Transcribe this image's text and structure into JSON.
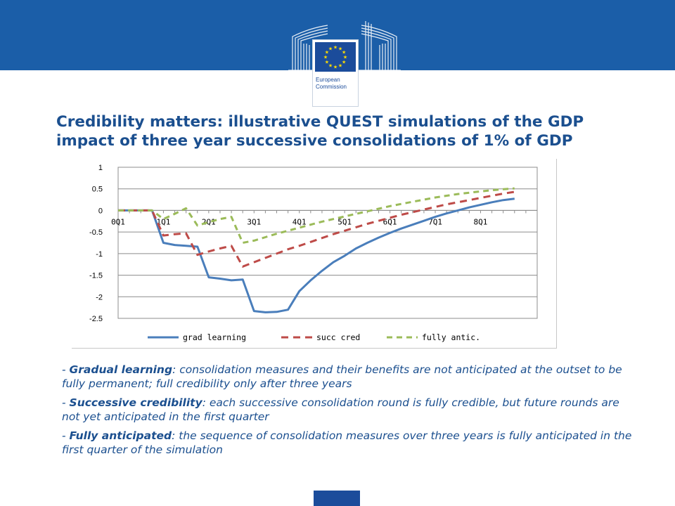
{
  "header": {
    "logo_line1": "European",
    "logo_line2": "Commission"
  },
  "title": {
    "line1": "Credibility matters: illustrative QUEST simulations of the GDP",
    "line2": "impact of three year successive consolidations of 1% of GDP"
  },
  "chart_data": {
    "type": "line",
    "ylim": [
      -2.5,
      1
    ],
    "yticks": [
      "1",
      "0.5",
      "0",
      "-0.5",
      "-1",
      "-1.5",
      "-2",
      "-2.5"
    ],
    "ytick_values": [
      1,
      0.5,
      0,
      -0.5,
      -1,
      -1.5,
      -2,
      -2.5
    ],
    "xlim": [
      0,
      35
    ],
    "xtick_labels": [
      "0Q1",
      "1Q1",
      "2Q1",
      "3Q1",
      "4Q1",
      "5Q1",
      "6Q1",
      "7Q1",
      "8Q1"
    ],
    "xtick_positions": [
      0,
      4,
      8,
      12,
      16,
      20,
      24,
      28,
      32
    ],
    "grid": true,
    "legend_position": "bottom",
    "series": [
      {
        "name": "grad learning",
        "color": "#4a7ebb",
        "dash": "solid",
        "points": [
          [
            0,
            0
          ],
          [
            1,
            0
          ],
          [
            2,
            0
          ],
          [
            3,
            0
          ],
          [
            4,
            -0.75
          ],
          [
            5,
            -0.8
          ],
          [
            6,
            -0.82
          ],
          [
            7,
            -0.84
          ],
          [
            8,
            -1.55
          ],
          [
            9,
            -1.58
          ],
          [
            10,
            -1.62
          ],
          [
            11,
            -1.6
          ],
          [
            12,
            -2.33
          ],
          [
            13,
            -2.36
          ],
          [
            14,
            -2.35
          ],
          [
            15,
            -2.3
          ],
          [
            16,
            -1.87
          ],
          [
            17,
            -1.62
          ],
          [
            18,
            -1.4
          ],
          [
            19,
            -1.2
          ],
          [
            20,
            -1.05
          ],
          [
            21,
            -0.88
          ],
          [
            22,
            -0.75
          ],
          [
            23,
            -0.63
          ],
          [
            24,
            -0.52
          ],
          [
            25,
            -0.42
          ],
          [
            26,
            -0.33
          ],
          [
            27,
            -0.24
          ],
          [
            28,
            -0.15
          ],
          [
            29,
            -0.07
          ],
          [
            30,
            0.0
          ],
          [
            31,
            0.07
          ],
          [
            32,
            0.13
          ],
          [
            33,
            0.19
          ],
          [
            34,
            0.24
          ],
          [
            35,
            0.27
          ]
        ]
      },
      {
        "name": "succ cred",
        "color": "#be4b48",
        "dash": "dashed",
        "points": [
          [
            0,
            0
          ],
          [
            1,
            0
          ],
          [
            2,
            0
          ],
          [
            3,
            0
          ],
          [
            4,
            -0.58
          ],
          [
            5,
            -0.55
          ],
          [
            6,
            -0.53
          ],
          [
            7,
            -1.03
          ],
          [
            8,
            -0.95
          ],
          [
            9,
            -0.88
          ],
          [
            10,
            -0.82
          ],
          [
            11,
            -1.3
          ],
          [
            12,
            -1.2
          ],
          [
            13,
            -1.1
          ],
          [
            14,
            -1.0
          ],
          [
            15,
            -0.9
          ],
          [
            16,
            -0.82
          ],
          [
            17,
            -0.73
          ],
          [
            18,
            -0.64
          ],
          [
            19,
            -0.55
          ],
          [
            20,
            -0.47
          ],
          [
            21,
            -0.39
          ],
          [
            22,
            -0.31
          ],
          [
            23,
            -0.24
          ],
          [
            24,
            -0.17
          ],
          [
            25,
            -0.1
          ],
          [
            26,
            -0.04
          ],
          [
            27,
            0.02
          ],
          [
            28,
            0.08
          ],
          [
            29,
            0.14
          ],
          [
            30,
            0.19
          ],
          [
            31,
            0.24
          ],
          [
            32,
            0.29
          ],
          [
            33,
            0.34
          ],
          [
            34,
            0.39
          ],
          [
            35,
            0.43
          ]
        ]
      },
      {
        "name": "fully antic.",
        "color": "#9bbb59",
        "dash": "dashed",
        "points": [
          [
            0,
            0
          ],
          [
            1,
            0
          ],
          [
            2,
            0
          ],
          [
            3,
            0
          ],
          [
            4,
            -0.2
          ],
          [
            5,
            -0.08
          ],
          [
            6,
            0.05
          ],
          [
            7,
            -0.35
          ],
          [
            8,
            -0.27
          ],
          [
            9,
            -0.2
          ],
          [
            10,
            -0.15
          ],
          [
            11,
            -0.75
          ],
          [
            12,
            -0.7
          ],
          [
            13,
            -0.62
          ],
          [
            14,
            -0.54
          ],
          [
            15,
            -0.47
          ],
          [
            16,
            -0.4
          ],
          [
            17,
            -0.33
          ],
          [
            18,
            -0.26
          ],
          [
            19,
            -0.2
          ],
          [
            20,
            -0.14
          ],
          [
            21,
            -0.08
          ],
          [
            22,
            -0.02
          ],
          [
            23,
            0.04
          ],
          [
            24,
            0.1
          ],
          [
            25,
            0.15
          ],
          [
            26,
            0.2
          ],
          [
            27,
            0.25
          ],
          [
            28,
            0.3
          ],
          [
            29,
            0.34
          ],
          [
            30,
            0.38
          ],
          [
            31,
            0.41
          ],
          [
            32,
            0.44
          ],
          [
            33,
            0.47
          ],
          [
            34,
            0.49
          ],
          [
            35,
            0.51
          ]
        ]
      }
    ]
  },
  "bullets": [
    {
      "lead": "- ",
      "term": "Gradual learning",
      "text": ": consolidation measures and their benefits are not anticipated at the outset to be fully permanent; full credibility only after three years"
    },
    {
      "lead": "- ",
      "term": "Successive credibility",
      "text": ": each successive consolidation round is fully credible, but future rounds are not yet anticipated in the first quarter"
    },
    {
      "lead": "- ",
      "term": "Fully anticipated",
      "text": ": the sequence of consolidation measures over three years is fully anticipated in the first quarter of the simulation"
    }
  ],
  "colors": {
    "brand_blue": "#1b5ea8",
    "title_blue": "#1b4f8f",
    "eu_flag_blue": "#1b4c9b",
    "eu_star_yellow": "#ffdd00"
  }
}
